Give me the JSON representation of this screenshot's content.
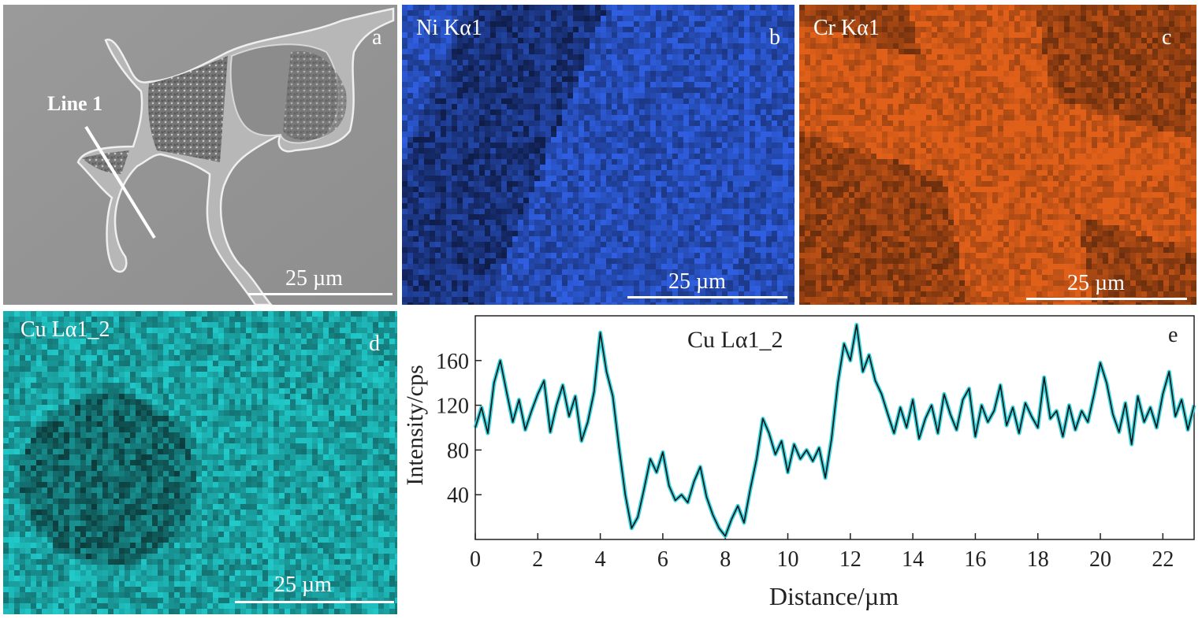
{
  "panels": {
    "a": {
      "letter": "a",
      "line_label": "Line 1",
      "scale_label": "25 µm"
    },
    "b": {
      "title": "Ni Kα1",
      "letter": "b",
      "scale_label": "25 µm",
      "color": "#2f5fe0"
    },
    "c": {
      "title": "Cr Kα1",
      "letter": "c",
      "scale_label": "25 µm",
      "color": "#e0601a"
    },
    "d": {
      "title": "Cu Lα1_2",
      "letter": "d",
      "scale_label": "25 µm",
      "color": "#21c9c9"
    }
  },
  "chart_data": {
    "type": "line",
    "title": "Cu Lα1_2",
    "letter": "e",
    "xlabel": "Distance/µm",
    "ylabel": "Intensity/cps",
    "xlim": [
      0,
      23
    ],
    "ylim": [
      0,
      200
    ],
    "xticks": [
      0,
      2,
      4,
      6,
      8,
      10,
      12,
      14,
      16,
      18,
      20,
      22
    ],
    "yticks": [
      40,
      80,
      120,
      160
    ],
    "line_color": "#111111",
    "glow_color": "#35d3dd",
    "series": [
      {
        "x": [
          0.0,
          0.2,
          0.4,
          0.6,
          0.8,
          1.0,
          1.2,
          1.4,
          1.6,
          1.8,
          2.0,
          2.2,
          2.4,
          2.6,
          2.8,
          3.0,
          3.2,
          3.4,
          3.6,
          3.8,
          4.0,
          4.2,
          4.4,
          4.6,
          4.8,
          5.0,
          5.2,
          5.4,
          5.6,
          5.8,
          6.0,
          6.2,
          6.4,
          6.6,
          6.8,
          7.0,
          7.2,
          7.4,
          7.6,
          7.8,
          8.0,
          8.2,
          8.4,
          8.6,
          8.8,
          9.0,
          9.2,
          9.4,
          9.6,
          9.8,
          10.0,
          10.2,
          10.4,
          10.6,
          10.8,
          11.0,
          11.2,
          11.4,
          11.6,
          11.8,
          12.0,
          12.2,
          12.4,
          12.6,
          12.8,
          13.0,
          13.2,
          13.4,
          13.6,
          13.8,
          14.0,
          14.2,
          14.4,
          14.6,
          14.8,
          15.0,
          15.2,
          15.4,
          15.6,
          15.8,
          16.0,
          16.2,
          16.4,
          16.6,
          16.8,
          17.0,
          17.2,
          17.4,
          17.6,
          17.8,
          18.0,
          18.2,
          18.4,
          18.6,
          18.8,
          19.0,
          19.2,
          19.4,
          19.6,
          19.8,
          20.0,
          20.2,
          20.4,
          20.6,
          20.8,
          21.0,
          21.2,
          21.4,
          21.6,
          21.8,
          22.0,
          22.2,
          22.4,
          22.6,
          22.8,
          23.0
        ],
        "y": [
          100,
          118,
          95,
          140,
          160,
          132,
          105,
          125,
          98,
          115,
          130,
          142,
          96,
          120,
          138,
          110,
          128,
          88,
          105,
          132,
          185,
          150,
          128,
          82,
          40,
          10,
          20,
          45,
          72,
          60,
          78,
          48,
          35,
          40,
          33,
          52,
          65,
          38,
          22,
          10,
          3,
          18,
          30,
          15,
          45,
          72,
          108,
          95,
          76,
          88,
          60,
          85,
          72,
          80,
          70,
          82,
          55,
          90,
          140,
          175,
          160,
          192,
          150,
          165,
          142,
          130,
          112,
          95,
          118,
          100,
          125,
          90,
          108,
          120,
          95,
          130,
          112,
          98,
          125,
          135,
          92,
          120,
          105,
          115,
          138,
          102,
          118,
          95,
          122,
          110,
          100,
          145,
          108,
          115,
          92,
          120,
          98,
          115,
          105,
          130,
          158,
          140,
          112,
          96,
          122,
          85,
          128,
          105,
          118,
          100,
          130,
          150,
          110,
          125,
          98,
          120
        ]
      }
    ]
  }
}
